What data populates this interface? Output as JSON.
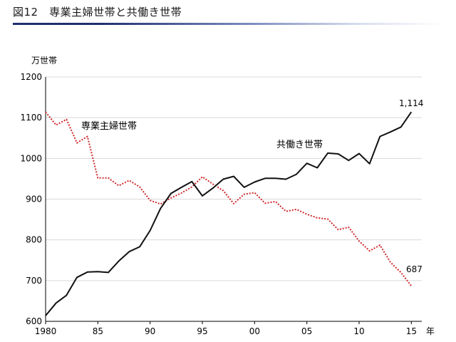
{
  "title": "図12　専業主婦世帯と共働き世帯",
  "chart_data": {
    "type": "line",
    "ylabel": "万世帯",
    "xlabel": "年",
    "ylim": [
      600,
      1200
    ],
    "yticks": [
      "600",
      "700",
      "800",
      "900",
      "1000",
      "1100",
      "1200"
    ],
    "xlim": [
      1980,
      2016
    ],
    "xticks": [
      {
        "x": 1980,
        "label": "1980"
      },
      {
        "x": 1985,
        "label": "85"
      },
      {
        "x": 1990,
        "label": "90"
      },
      {
        "x": 1995,
        "label": "95"
      },
      {
        "x": 2000,
        "label": "00"
      },
      {
        "x": 2005,
        "label": "05"
      },
      {
        "x": 2010,
        "label": "10"
      },
      {
        "x": 2015,
        "label": "15"
      }
    ],
    "x": [
      1980,
      1981,
      1982,
      1983,
      1984,
      1985,
      1986,
      1987,
      1988,
      1989,
      1990,
      1991,
      1992,
      1993,
      1994,
      1995,
      1996,
      1997,
      1998,
      1999,
      2000,
      2001,
      2002,
      2003,
      2004,
      2005,
      2006,
      2007,
      2008,
      2009,
      2010,
      2011,
      2012,
      2013,
      2014,
      2015
    ],
    "series": [
      {
        "name": "専業主婦世帯",
        "color": "#d0282b",
        "style": "dotted",
        "values": [
          1114,
          1082,
          1096,
          1038,
          1054,
          952,
          952,
          933,
          946,
          930,
          897,
          888,
          903,
          915,
          930,
          955,
          937,
          921,
          889,
          912,
          916,
          890,
          894,
          870,
          875,
          863,
          854,
          851,
          825,
          831,
          797,
          773,
          787,
          745,
          720,
          687
        ],
        "end_label": "687"
      },
      {
        "name": "共働き世帯",
        "color": "#111111",
        "style": "solid",
        "values": [
          614,
          645,
          664,
          708,
          721,
          722,
          720,
          748,
          771,
          783,
          823,
          877,
          914,
          929,
          943,
          908,
          927,
          949,
          956,
          929,
          942,
          951,
          951,
          949,
          961,
          988,
          977,
          1013,
          1011,
          995,
          1012,
          987,
          1054,
          1065,
          1077,
          1114
        ],
        "end_label": "1,114"
      }
    ],
    "grid": "horizontal",
    "legend": "inline labels"
  }
}
